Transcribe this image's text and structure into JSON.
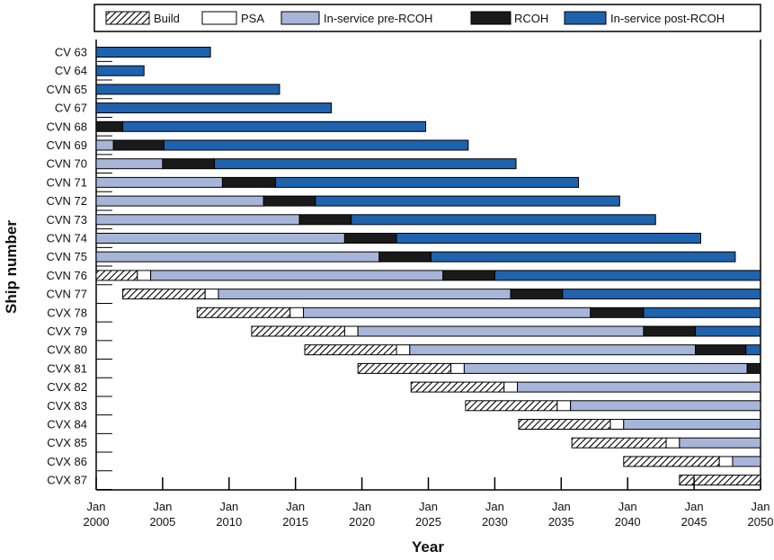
{
  "chart_data": {
    "type": "bar",
    "orientation": "horizontal-timeline",
    "xlabel": "Year",
    "ylabel": "Ship number",
    "xlim": [
      2000,
      2050
    ],
    "x_ticks": [
      {
        "value": 2000,
        "month": "Jan",
        "year": "2000"
      },
      {
        "value": 2005,
        "month": "Jan",
        "year": "2005"
      },
      {
        "value": 2010,
        "month": "Jan",
        "year": "2010"
      },
      {
        "value": 2015,
        "month": "Jan",
        "year": "2015"
      },
      {
        "value": 2020,
        "month": "Jan",
        "year": "2020"
      },
      {
        "value": 2025,
        "month": "Jan",
        "year": "2025"
      },
      {
        "value": 2030,
        "month": "Jan",
        "year": "2030"
      },
      {
        "value": 2035,
        "month": "Jan",
        "year": "2035"
      },
      {
        "value": 2040,
        "month": "Jan",
        "year": "2040"
      },
      {
        "value": 2045,
        "month": "Jan",
        "year": "2045"
      },
      {
        "value": 2050,
        "month": "Jan",
        "year": "2050"
      }
    ],
    "legend": {
      "placement": "top",
      "entries": [
        {
          "key": "build",
          "label": "Build"
        },
        {
          "key": "psa",
          "label": "PSA"
        },
        {
          "key": "pre",
          "label": "In-service pre-RCOH"
        },
        {
          "key": "rcoh",
          "label": "RCOH"
        },
        {
          "key": "post",
          "label": "In-service post-RCOH"
        }
      ]
    },
    "colors": {
      "build": "#ffffff",
      "psa": "#ffffff",
      "pre": "#a7b5d9",
      "rcoh": "#1a1a1a",
      "post": "#1f62ad",
      "outline": "#000000"
    },
    "ships": [
      {
        "name": "CV 63",
        "segments": [
          {
            "phase": "post",
            "start": 2000.0,
            "end": 2008.6
          }
        ]
      },
      {
        "name": "CV 64",
        "segments": [
          {
            "phase": "post",
            "start": 2000.0,
            "end": 2003.6
          }
        ]
      },
      {
        "name": "CVN 65",
        "segments": [
          {
            "phase": "post",
            "start": 2000.0,
            "end": 2013.8
          }
        ]
      },
      {
        "name": "CV 67",
        "segments": [
          {
            "phase": "post",
            "start": 2000.0,
            "end": 2017.7
          }
        ]
      },
      {
        "name": "CVN 68",
        "segments": [
          {
            "phase": "rcoh",
            "start": 2000.0,
            "end": 2002.0
          },
          {
            "phase": "post",
            "start": 2002.0,
            "end": 2024.8
          }
        ]
      },
      {
        "name": "CVN 69",
        "segments": [
          {
            "phase": "pre",
            "start": 2000.0,
            "end": 2001.3
          },
          {
            "phase": "rcoh",
            "start": 2001.3,
            "end": 2005.1
          },
          {
            "phase": "post",
            "start": 2005.1,
            "end": 2028.0
          }
        ]
      },
      {
        "name": "CVN 70",
        "segments": [
          {
            "phase": "pre",
            "start": 2000.0,
            "end": 2005.0
          },
          {
            "phase": "rcoh",
            "start": 2005.0,
            "end": 2008.9
          },
          {
            "phase": "post",
            "start": 2008.9,
            "end": 2031.6
          }
        ]
      },
      {
        "name": "CVN 71",
        "segments": [
          {
            "phase": "pre",
            "start": 2000.0,
            "end": 2009.5
          },
          {
            "phase": "rcoh",
            "start": 2009.5,
            "end": 2013.5
          },
          {
            "phase": "post",
            "start": 2013.5,
            "end": 2036.3
          }
        ]
      },
      {
        "name": "CVN 72",
        "segments": [
          {
            "phase": "pre",
            "start": 2000.0,
            "end": 2012.6
          },
          {
            "phase": "rcoh",
            "start": 2012.6,
            "end": 2016.5
          },
          {
            "phase": "post",
            "start": 2016.5,
            "end": 2039.4
          }
        ]
      },
      {
        "name": "CVN 73",
        "segments": [
          {
            "phase": "pre",
            "start": 2000.0,
            "end": 2015.3
          },
          {
            "phase": "rcoh",
            "start": 2015.3,
            "end": 2019.2
          },
          {
            "phase": "post",
            "start": 2019.2,
            "end": 2042.1
          }
        ]
      },
      {
        "name": "CVN 74",
        "segments": [
          {
            "phase": "pre",
            "start": 2000.0,
            "end": 2018.7
          },
          {
            "phase": "rcoh",
            "start": 2018.7,
            "end": 2022.6
          },
          {
            "phase": "post",
            "start": 2022.6,
            "end": 2045.5
          }
        ]
      },
      {
        "name": "CVN 75",
        "segments": [
          {
            "phase": "pre",
            "start": 2000.0,
            "end": 2021.3
          },
          {
            "phase": "rcoh",
            "start": 2021.3,
            "end": 2025.2
          },
          {
            "phase": "post",
            "start": 2025.2,
            "end": 2048.1
          }
        ]
      },
      {
        "name": "CVN 76",
        "segments": [
          {
            "phase": "build",
            "start": 2000.0,
            "end": 2003.1
          },
          {
            "phase": "psa",
            "start": 2003.1,
            "end": 2004.1
          },
          {
            "phase": "pre",
            "start": 2004.1,
            "end": 2026.1
          },
          {
            "phase": "rcoh",
            "start": 2026.1,
            "end": 2030.0
          },
          {
            "phase": "post",
            "start": 2030.0,
            "end": 2050.0
          }
        ]
      },
      {
        "name": "CVN 77",
        "segments": [
          {
            "phase": "build",
            "start": 2002.0,
            "end": 2008.2
          },
          {
            "phase": "psa",
            "start": 2008.2,
            "end": 2009.2
          },
          {
            "phase": "pre",
            "start": 2009.2,
            "end": 2031.2
          },
          {
            "phase": "rcoh",
            "start": 2031.2,
            "end": 2035.1
          },
          {
            "phase": "post",
            "start": 2035.1,
            "end": 2050.0
          }
        ]
      },
      {
        "name": "CVX 78",
        "segments": [
          {
            "phase": "build",
            "start": 2007.6,
            "end": 2014.6
          },
          {
            "phase": "psa",
            "start": 2014.6,
            "end": 2015.6
          },
          {
            "phase": "pre",
            "start": 2015.6,
            "end": 2037.2
          },
          {
            "phase": "rcoh",
            "start": 2037.2,
            "end": 2041.2
          },
          {
            "phase": "post",
            "start": 2041.2,
            "end": 2050.0
          }
        ]
      },
      {
        "name": "CVX 79",
        "segments": [
          {
            "phase": "build",
            "start": 2011.7,
            "end": 2018.7
          },
          {
            "phase": "psa",
            "start": 2018.7,
            "end": 2019.7
          },
          {
            "phase": "pre",
            "start": 2019.7,
            "end": 2041.2
          },
          {
            "phase": "rcoh",
            "start": 2041.2,
            "end": 2045.1
          },
          {
            "phase": "post",
            "start": 2045.1,
            "end": 2050.0
          }
        ]
      },
      {
        "name": "CVX 80",
        "segments": [
          {
            "phase": "build",
            "start": 2015.7,
            "end": 2022.6
          },
          {
            "phase": "psa",
            "start": 2022.6,
            "end": 2023.6
          },
          {
            "phase": "pre",
            "start": 2023.6,
            "end": 2045.1
          },
          {
            "phase": "rcoh",
            "start": 2045.1,
            "end": 2048.9
          },
          {
            "phase": "post",
            "start": 2048.9,
            "end": 2050.0
          }
        ]
      },
      {
        "name": "CVX 81",
        "segments": [
          {
            "phase": "build",
            "start": 2019.7,
            "end": 2026.7
          },
          {
            "phase": "psa",
            "start": 2026.7,
            "end": 2027.7
          },
          {
            "phase": "pre",
            "start": 2027.7,
            "end": 2049.0
          },
          {
            "phase": "rcoh",
            "start": 2049.0,
            "end": 2050.0
          }
        ]
      },
      {
        "name": "CVX 82",
        "segments": [
          {
            "phase": "build",
            "start": 2023.7,
            "end": 2030.7
          },
          {
            "phase": "psa",
            "start": 2030.7,
            "end": 2031.7
          },
          {
            "phase": "pre",
            "start": 2031.7,
            "end": 2050.0
          }
        ]
      },
      {
        "name": "CVX 83",
        "segments": [
          {
            "phase": "build",
            "start": 2027.8,
            "end": 2034.7
          },
          {
            "phase": "psa",
            "start": 2034.7,
            "end": 2035.7
          },
          {
            "phase": "pre",
            "start": 2035.7,
            "end": 2050.0
          }
        ]
      },
      {
        "name": "CVX 84",
        "segments": [
          {
            "phase": "build",
            "start": 2031.8,
            "end": 2038.7
          },
          {
            "phase": "psa",
            "start": 2038.7,
            "end": 2039.7
          },
          {
            "phase": "pre",
            "start": 2039.7,
            "end": 2050.0
          }
        ]
      },
      {
        "name": "CVX 85",
        "segments": [
          {
            "phase": "build",
            "start": 2035.8,
            "end": 2042.9
          },
          {
            "phase": "psa",
            "start": 2042.9,
            "end": 2043.9
          },
          {
            "phase": "pre",
            "start": 2043.9,
            "end": 2050.0
          }
        ]
      },
      {
        "name": "CVX 86",
        "segments": [
          {
            "phase": "build",
            "start": 2039.7,
            "end": 2046.9
          },
          {
            "phase": "psa",
            "start": 2046.9,
            "end": 2047.9
          },
          {
            "phase": "pre",
            "start": 2047.9,
            "end": 2050.0
          }
        ]
      },
      {
        "name": "CVX 87",
        "segments": [
          {
            "phase": "build",
            "start": 2043.9,
            "end": 2050.0
          }
        ]
      }
    ]
  }
}
